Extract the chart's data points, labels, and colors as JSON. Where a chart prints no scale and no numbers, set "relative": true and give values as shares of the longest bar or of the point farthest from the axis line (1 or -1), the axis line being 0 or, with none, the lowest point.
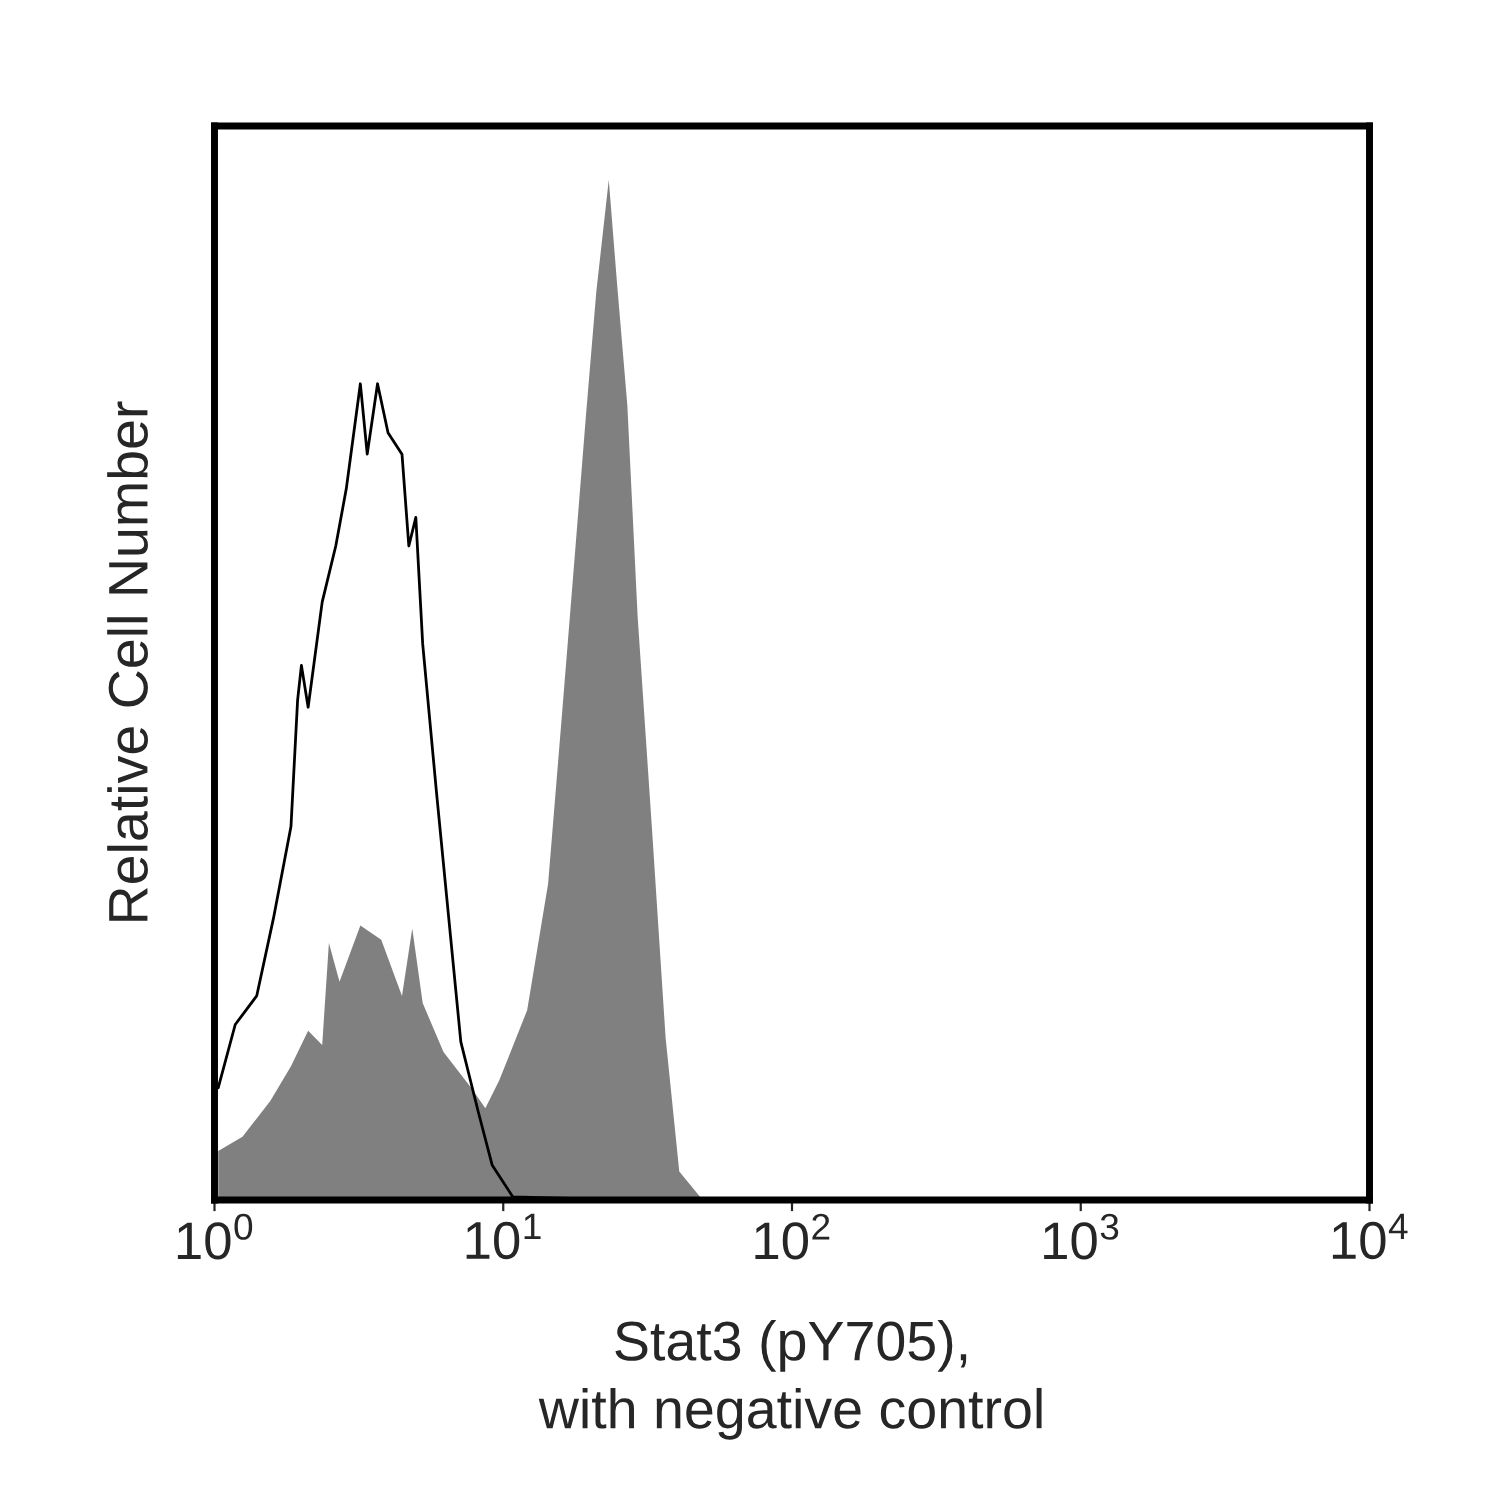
{
  "chart_data": {
    "type": "area",
    "relative": true,
    "log": "x",
    "xlabel": "Stat3 (pY705),\nwith negative control",
    "ylabel": "Relative Cell Number",
    "xlim": [
      1,
      10000
    ],
    "xticks": [
      {
        "value": 1,
        "label": "10$^{0}$"
      },
      {
        "value": 10,
        "label": "10$^{1}$"
      },
      {
        "value": 100,
        "label": "10$^{2}$"
      },
      {
        "value": 1000,
        "label": "10$^{3}$"
      },
      {
        "value": 10000,
        "label": "10$^{4}$"
      }
    ],
    "grid": false,
    "legend": false,
    "series": [
      {
        "color": "#808080",
        "x": [
          1.03,
          1.25,
          1.56,
          1.84,
          2.11,
          2.36,
          2.49,
          2.71,
          3.2,
          3.78,
          4.46,
          4.84,
          5.26,
          6.21,
          7.74,
          8.67,
          9.68,
          12.1,
          14.3,
          15.9,
          17.8,
          19.3,
          21.0,
          23.2,
          24.8,
          26.9,
          29.2,
          32.7,
          36.5,
          40.7,
          48.1,
          63.5
        ],
        "values": [
          0.048,
          0.062,
          0.097,
          0.131,
          0.166,
          0.152,
          0.252,
          0.214,
          0.269,
          0.255,
          0.2,
          0.266,
          0.193,
          0.145,
          0.11,
          0.09,
          0.117,
          0.186,
          0.31,
          0.469,
          0.641,
          0.766,
          0.89,
          1,
          0.897,
          0.779,
          0.572,
          0.366,
          0.159,
          0.028,
          0.003,
          0.001
        ]
      },
      {
        "type": "line",
        "color": "#000000",
        "x": [
          1.03,
          1.18,
          1.4,
          1.6,
          1.84,
          1.94,
          2.0,
          2.11,
          2.36,
          2.63,
          2.86,
          3.2,
          3.38,
          3.67,
          3.99,
          4.46,
          4.71,
          4.98,
          5.26,
          5.87,
          6.39,
          7.13,
          8.2,
          9.16,
          10.8,
          19.9
        ],
        "values": [
          0.11,
          0.172,
          0.2,
          0.276,
          0.366,
          0.49,
          0.524,
          0.483,
          0.586,
          0.641,
          0.697,
          0.8,
          0.731,
          0.8,
          0.752,
          0.731,
          0.641,
          0.669,
          0.545,
          0.4,
          0.293,
          0.155,
          0.086,
          0.034,
          0.003,
          0.001
        ]
      }
    ]
  }
}
